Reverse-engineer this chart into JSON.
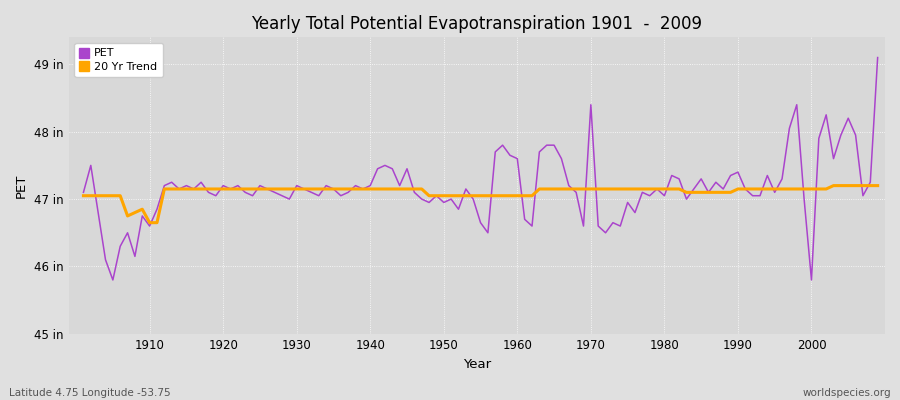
{
  "title": "Yearly Total Potential Evapotranspiration 1901  -  2009",
  "xlabel": "Year",
  "ylabel": "PET",
  "subtitle_left": "Latitude 4.75 Longitude -53.75",
  "subtitle_right": "worldspecies.org",
  "pet_color": "#AA44CC",
  "trend_color": "#FFA500",
  "fig_bg_color": "#E0E0E0",
  "plot_bg_color": "#D8D8D8",
  "ylim_min": 45.0,
  "ylim_max": 49.4,
  "xlim_min": 1899,
  "xlim_max": 2010,
  "ytick_values": [
    45,
    46,
    47,
    48,
    49
  ],
  "ytick_labels": [
    "45 in",
    "46 in",
    "47 in",
    "48 in",
    "49 in"
  ],
  "xtick_values": [
    1910,
    1920,
    1930,
    1940,
    1950,
    1960,
    1970,
    1980,
    1990,
    2000
  ],
  "years": [
    1901,
    1902,
    1903,
    1904,
    1905,
    1906,
    1907,
    1908,
    1909,
    1910,
    1911,
    1912,
    1913,
    1914,
    1915,
    1916,
    1917,
    1918,
    1919,
    1920,
    1921,
    1922,
    1923,
    1924,
    1925,
    1926,
    1927,
    1928,
    1929,
    1930,
    1931,
    1932,
    1933,
    1934,
    1935,
    1936,
    1937,
    1938,
    1939,
    1940,
    1941,
    1942,
    1943,
    1944,
    1945,
    1946,
    1947,
    1948,
    1949,
    1950,
    1951,
    1952,
    1953,
    1954,
    1955,
    1956,
    1957,
    1958,
    1959,
    1960,
    1961,
    1962,
    1963,
    1964,
    1965,
    1966,
    1967,
    1968,
    1969,
    1970,
    1971,
    1972,
    1973,
    1974,
    1975,
    1976,
    1977,
    1978,
    1979,
    1980,
    1981,
    1982,
    1983,
    1984,
    1985,
    1986,
    1987,
    1988,
    1989,
    1990,
    1991,
    1992,
    1993,
    1994,
    1995,
    1996,
    1997,
    1998,
    1999,
    2000,
    2001,
    2002,
    2003,
    2004,
    2005,
    2006,
    2007,
    2008,
    2009
  ],
  "pet_values": [
    47.1,
    47.5,
    46.8,
    46.1,
    45.8,
    46.3,
    46.5,
    46.15,
    46.75,
    46.6,
    46.85,
    47.2,
    47.25,
    47.15,
    47.2,
    47.15,
    47.25,
    47.1,
    47.05,
    47.2,
    47.15,
    47.2,
    47.1,
    47.05,
    47.2,
    47.15,
    47.1,
    47.05,
    47.0,
    47.2,
    47.15,
    47.1,
    47.05,
    47.2,
    47.15,
    47.05,
    47.1,
    47.2,
    47.15,
    47.2,
    47.45,
    47.5,
    47.45,
    47.2,
    47.45,
    47.1,
    47.0,
    46.95,
    47.05,
    46.95,
    47.0,
    46.85,
    47.15,
    47.0,
    46.65,
    46.5,
    47.7,
    47.8,
    47.65,
    47.6,
    46.7,
    46.6,
    47.7,
    47.8,
    47.8,
    47.6,
    47.2,
    47.1,
    46.6,
    48.4,
    46.6,
    46.5,
    46.65,
    46.6,
    46.95,
    46.8,
    47.1,
    47.05,
    47.15,
    47.05,
    47.35,
    47.3,
    47.0,
    47.15,
    47.3,
    47.1,
    47.25,
    47.15,
    47.35,
    47.4,
    47.15,
    47.05,
    47.05,
    47.35,
    47.1,
    47.3,
    48.05,
    48.4,
    47.0,
    45.8,
    47.9,
    48.25,
    47.6,
    47.95,
    48.2,
    47.95,
    47.05,
    47.25,
    49.1
  ],
  "trend_values": [
    47.05,
    47.05,
    47.05,
    47.05,
    47.05,
    47.05,
    46.75,
    46.8,
    46.85,
    46.65,
    46.65,
    47.15,
    47.15,
    47.15,
    47.15,
    47.15,
    47.15,
    47.15,
    47.15,
    47.15,
    47.15,
    47.15,
    47.15,
    47.15,
    47.15,
    47.15,
    47.15,
    47.15,
    47.15,
    47.15,
    47.15,
    47.15,
    47.15,
    47.15,
    47.15,
    47.15,
    47.15,
    47.15,
    47.15,
    47.15,
    47.15,
    47.15,
    47.15,
    47.15,
    47.15,
    47.15,
    47.15,
    47.05,
    47.05,
    47.05,
    47.05,
    47.05,
    47.05,
    47.05,
    47.05,
    47.05,
    47.05,
    47.05,
    47.05,
    47.05,
    47.05,
    47.05,
    47.15,
    47.15,
    47.15,
    47.15,
    47.15,
    47.15,
    47.15,
    47.15,
    47.15,
    47.15,
    47.15,
    47.15,
    47.15,
    47.15,
    47.15,
    47.15,
    47.15,
    47.15,
    47.15,
    47.15,
    47.1,
    47.1,
    47.1,
    47.1,
    47.1,
    47.1,
    47.1,
    47.15,
    47.15,
    47.15,
    47.15,
    47.15,
    47.15,
    47.15,
    47.15,
    47.15,
    47.15,
    47.15,
    47.15,
    47.15,
    47.2,
    47.2,
    47.2,
    47.2,
    47.2,
    47.2,
    47.2
  ]
}
